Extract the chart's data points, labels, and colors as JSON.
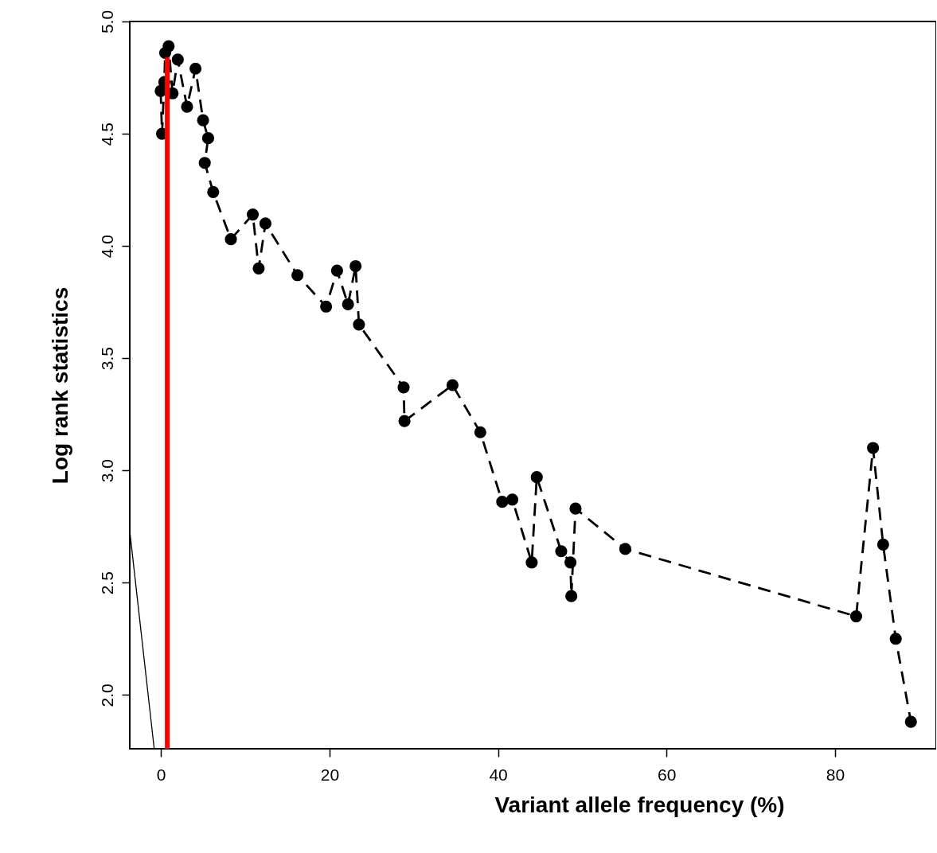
{
  "chart_data": {
    "type": "line",
    "xlabel": "Variant allele frequency (%)",
    "ylabel": "Log rank statistics",
    "xlim": [
      -3.7,
      92
    ],
    "ylim": [
      1.76,
      5.0
    ],
    "xticks": [
      0,
      20,
      40,
      60,
      80
    ],
    "yticks": [
      {
        "value": 2,
        "label": "2.0"
      },
      {
        "value": 2.5,
        "label": "2.5"
      },
      {
        "value": 3,
        "label": "3.0"
      },
      {
        "value": 3.5,
        "label": "3.5"
      },
      {
        "value": 4,
        "label": "4.0"
      },
      {
        "value": 4.5,
        "label": "4.5"
      },
      {
        "value": 5,
        "label": "5.0"
      }
    ],
    "series": [
      {
        "type": "line",
        "color": "#000000",
        "marker": "circle",
        "line_style": "dashed",
        "x": [
          -0.03,
          0.13,
          0.4,
          0.5,
          0.91,
          1.38,
          2.0,
          3.1,
          4.1,
          5.0,
          5.6,
          5.2,
          6.2,
          8.3,
          10.9,
          11.6,
          12.4,
          16.2,
          19.6,
          20.9,
          22.2,
          23.1,
          23.5,
          28.8,
          28.9,
          34.6,
          37.9,
          40.5,
          41.7,
          44.0,
          44.6,
          47.5,
          48.6,
          48.7,
          49.2,
          55.1,
          82.5,
          84.5,
          85.7,
          87.2,
          89.0
        ],
        "values": [
          4.69,
          4.5,
          4.73,
          4.86,
          4.89,
          4.68,
          4.83,
          4.62,
          4.79,
          4.56,
          4.48,
          4.37,
          4.24,
          4.03,
          4.14,
          3.9,
          4.1,
          3.87,
          3.73,
          3.89,
          3.74,
          3.91,
          3.65,
          3.37,
          3.22,
          3.38,
          3.17,
          2.86,
          2.87,
          2.59,
          2.97,
          2.64,
          2.59,
          2.44,
          2.83,
          2.65,
          2.35,
          3.1,
          2.67,
          2.25,
          1.88
        ]
      },
      {
        "type": "line",
        "color": "#ff0000",
        "marker": "none",
        "line_style": "solid",
        "x": [
          0.75,
          0.75
        ],
        "values": [
          1.76,
          4.84
        ]
      },
      {
        "type": "line",
        "color": "#000000",
        "marker": "none",
        "line_style": "solid",
        "x": [
          -3.7,
          -0.8
        ],
        "values": [
          2.73,
          1.76
        ]
      }
    ]
  }
}
